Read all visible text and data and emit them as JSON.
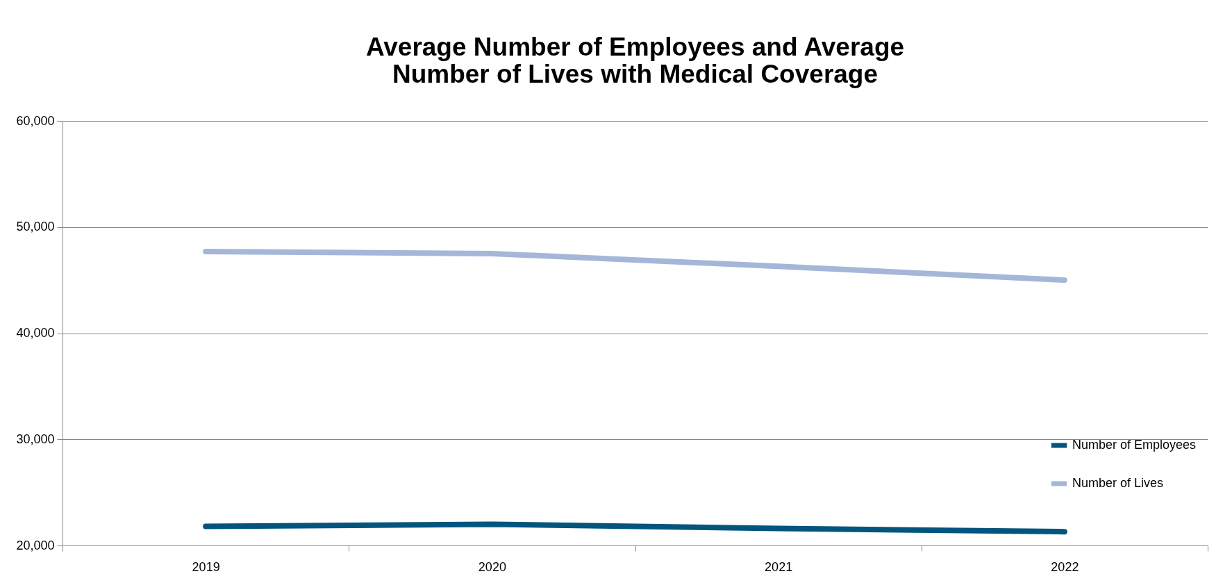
{
  "chart_data": {
    "type": "line",
    "title": "Average Number of Employees and Average\nNumber of Lives with Medical Coverage",
    "categories": [
      "2019",
      "2020",
      "2021",
      "2022"
    ],
    "series": [
      {
        "name": "Number of Employees",
        "color": "#03557e",
        "values": [
          21800,
          22000,
          21600,
          21300
        ]
      },
      {
        "name": "Number of Lives",
        "color": "#a5b7d8",
        "values": [
          47700,
          47500,
          46300,
          45000
        ]
      }
    ],
    "ylim": [
      20000,
      60000
    ],
    "yticks": [
      {
        "value": 20000,
        "label": "20,000"
      },
      {
        "value": 30000,
        "label": "30,000"
      },
      {
        "value": 40000,
        "label": "40,000"
      },
      {
        "value": 50000,
        "label": "50,000"
      },
      {
        "value": 60000,
        "label": "60,000"
      }
    ],
    "grid": "y",
    "legend": "bottom right",
    "marker": "none",
    "line_style": "solid"
  }
}
